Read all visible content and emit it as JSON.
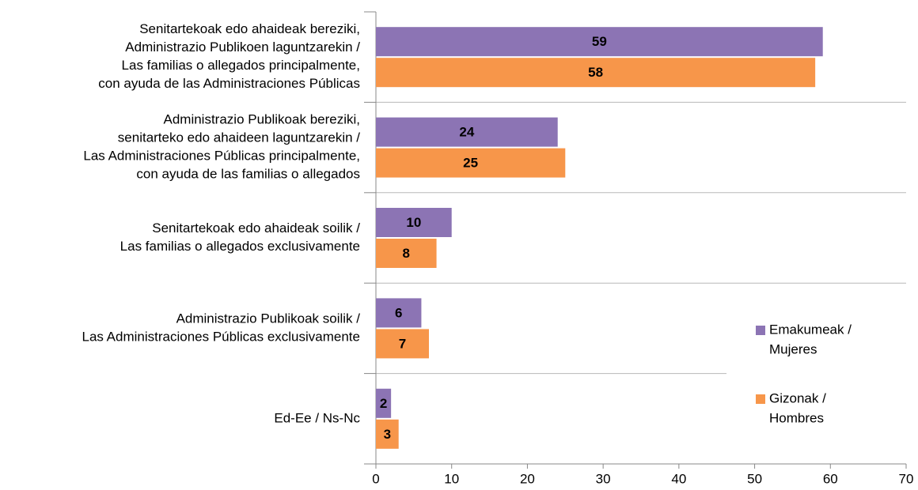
{
  "chart_data": {
    "type": "barh",
    "categories": [
      [
        "Senitartekoak edo ahaideak bereziki,",
        "Administrazio Publikoen laguntzarekin /",
        "Las familias o allegados principalmente,",
        "con ayuda de las Administraciones Públicas"
      ],
      [
        "Administrazio Publikoak bereziki,",
        "senitarteko edo ahaideen laguntzarekin /",
        "Las Administraciones Públicas principalmente,",
        "con ayuda de las familias o allegados"
      ],
      [
        "Senitartekoak edo ahaideak soilik /",
        "Las familias o allegados exclusivamente"
      ],
      [
        "Administrazio Publikoak soilik /",
        "Las Administraciones Públicas exclusivamente"
      ],
      [
        "Ed-Ee / Ns-Nc"
      ]
    ],
    "series": [
      {
        "name": [
          "Emakumeak /",
          "Mujeres"
        ],
        "color": "#8c74b4",
        "values": [
          59,
          24,
          10,
          6,
          2
        ]
      },
      {
        "name": [
          "Gizonak /",
          "Hombres"
        ],
        "color": "#f7964a",
        "values": [
          58,
          25,
          8,
          7,
          3
        ]
      }
    ],
    "xlim": [
      0,
      70
    ],
    "xticks": [
      0,
      10,
      20,
      30,
      40,
      50,
      60,
      70
    ]
  }
}
